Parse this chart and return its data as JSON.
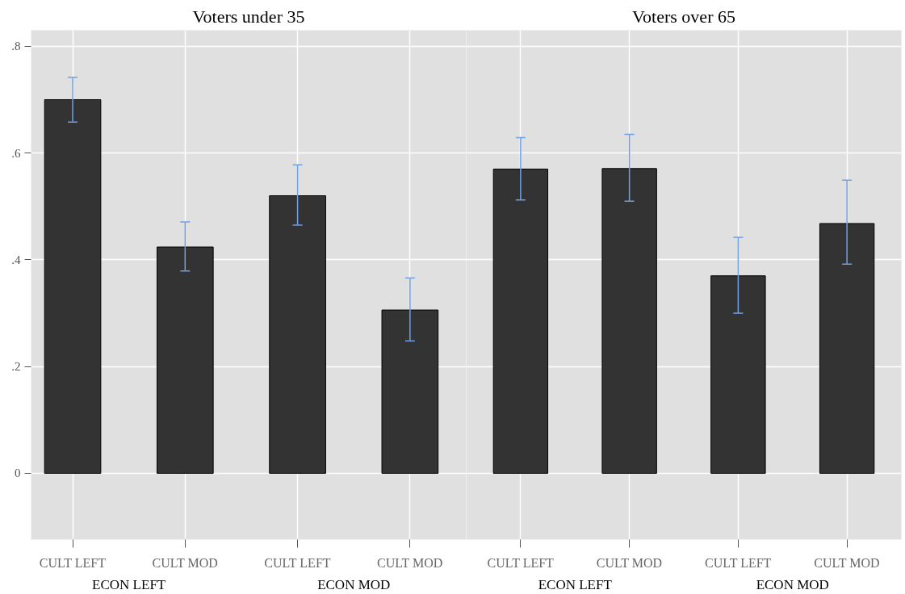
{
  "chart_data": [
    {
      "type": "bar",
      "title": "Voters under 35",
      "categories": [
        "CULT LEFT",
        "CULT MOD",
        "CULT LEFT",
        "CULT MOD"
      ],
      "values": [
        0.7,
        0.424,
        0.52,
        0.306
      ],
      "errors": [
        [
          0.658,
          0.742
        ],
        [
          0.379,
          0.471
        ],
        [
          0.465,
          0.578
        ],
        [
          0.248,
          0.366
        ]
      ],
      "color": "#333333",
      "annotations": [
        "ECON LEFT",
        "ECON MOD"
      ],
      "ylim": [
        -0.124,
        0.83
      ],
      "yticks": [
        0,
        {
          "value": 0.2,
          "label": ".2"
        },
        {
          "value": 0.4,
          "label": ".4"
        },
        {
          "value": 0.6,
          "label": ".6"
        },
        {
          "value": 0.8,
          "label": ".8"
        }
      ],
      "grid": true
    },
    {
      "type": "bar",
      "title": "Voters over 65",
      "categories": [
        "CULT LEFT",
        "CULT MOD",
        "CULT LEFT",
        "CULT MOD"
      ],
      "values": [
        0.57,
        0.571,
        0.37,
        0.468
      ],
      "errors": [
        [
          0.512,
          0.629
        ],
        [
          0.51,
          0.635
        ],
        [
          0.3,
          0.442
        ],
        [
          0.392,
          0.549
        ]
      ],
      "color": "#333333",
      "annotations": [
        "ECON LEFT",
        "ECON MOD"
      ],
      "ylim": [
        -0.124,
        0.83
      ],
      "yticks": [
        0,
        0.2,
        0.4,
        0.6,
        0.8
      ],
      "grid": true,
      "tick_labels": "x"
    }
  ]
}
